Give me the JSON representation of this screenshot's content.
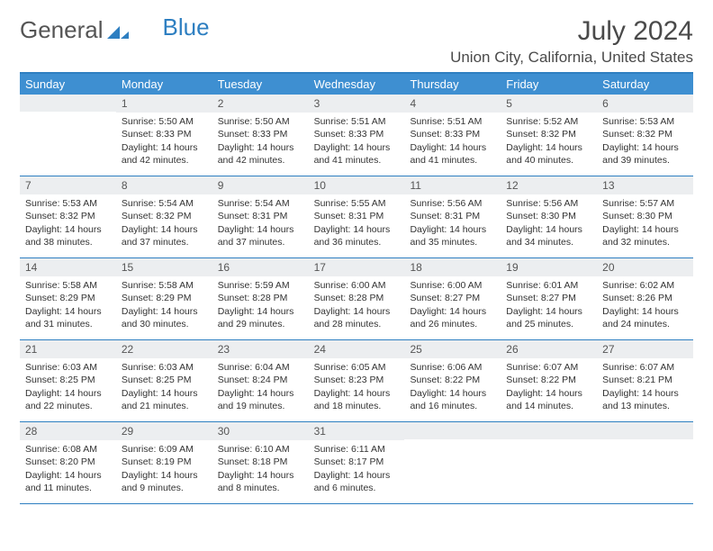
{
  "brand": {
    "part1": "General",
    "part2": "Blue"
  },
  "title": {
    "month_year": "July 2024",
    "location": "Union City, California, United States"
  },
  "colors": {
    "header_bg": "#3e8fd1",
    "header_border": "#2e7fc1",
    "daynum_bg": "#eceef0",
    "text": "#333333",
    "title_text": "#4a4a4a",
    "blue": "#2e7fc1"
  },
  "day_names": [
    "Sunday",
    "Monday",
    "Tuesday",
    "Wednesday",
    "Thursday",
    "Friday",
    "Saturday"
  ],
  "weeks": [
    [
      null,
      {
        "n": "1",
        "sr": "5:50 AM",
        "ss": "8:33 PM",
        "dl": "14 hours and 42 minutes."
      },
      {
        "n": "2",
        "sr": "5:50 AM",
        "ss": "8:33 PM",
        "dl": "14 hours and 42 minutes."
      },
      {
        "n": "3",
        "sr": "5:51 AM",
        "ss": "8:33 PM",
        "dl": "14 hours and 41 minutes."
      },
      {
        "n": "4",
        "sr": "5:51 AM",
        "ss": "8:33 PM",
        "dl": "14 hours and 41 minutes."
      },
      {
        "n": "5",
        "sr": "5:52 AM",
        "ss": "8:32 PM",
        "dl": "14 hours and 40 minutes."
      },
      {
        "n": "6",
        "sr": "5:53 AM",
        "ss": "8:32 PM",
        "dl": "14 hours and 39 minutes."
      }
    ],
    [
      {
        "n": "7",
        "sr": "5:53 AM",
        "ss": "8:32 PM",
        "dl": "14 hours and 38 minutes."
      },
      {
        "n": "8",
        "sr": "5:54 AM",
        "ss": "8:32 PM",
        "dl": "14 hours and 37 minutes."
      },
      {
        "n": "9",
        "sr": "5:54 AM",
        "ss": "8:31 PM",
        "dl": "14 hours and 37 minutes."
      },
      {
        "n": "10",
        "sr": "5:55 AM",
        "ss": "8:31 PM",
        "dl": "14 hours and 36 minutes."
      },
      {
        "n": "11",
        "sr": "5:56 AM",
        "ss": "8:31 PM",
        "dl": "14 hours and 35 minutes."
      },
      {
        "n": "12",
        "sr": "5:56 AM",
        "ss": "8:30 PM",
        "dl": "14 hours and 34 minutes."
      },
      {
        "n": "13",
        "sr": "5:57 AM",
        "ss": "8:30 PM",
        "dl": "14 hours and 32 minutes."
      }
    ],
    [
      {
        "n": "14",
        "sr": "5:58 AM",
        "ss": "8:29 PM",
        "dl": "14 hours and 31 minutes."
      },
      {
        "n": "15",
        "sr": "5:58 AM",
        "ss": "8:29 PM",
        "dl": "14 hours and 30 minutes."
      },
      {
        "n": "16",
        "sr": "5:59 AM",
        "ss": "8:28 PM",
        "dl": "14 hours and 29 minutes."
      },
      {
        "n": "17",
        "sr": "6:00 AM",
        "ss": "8:28 PM",
        "dl": "14 hours and 28 minutes."
      },
      {
        "n": "18",
        "sr": "6:00 AM",
        "ss": "8:27 PM",
        "dl": "14 hours and 26 minutes."
      },
      {
        "n": "19",
        "sr": "6:01 AM",
        "ss": "8:27 PM",
        "dl": "14 hours and 25 minutes."
      },
      {
        "n": "20",
        "sr": "6:02 AM",
        "ss": "8:26 PM",
        "dl": "14 hours and 24 minutes."
      }
    ],
    [
      {
        "n": "21",
        "sr": "6:03 AM",
        "ss": "8:25 PM",
        "dl": "14 hours and 22 minutes."
      },
      {
        "n": "22",
        "sr": "6:03 AM",
        "ss": "8:25 PM",
        "dl": "14 hours and 21 minutes."
      },
      {
        "n": "23",
        "sr": "6:04 AM",
        "ss": "8:24 PM",
        "dl": "14 hours and 19 minutes."
      },
      {
        "n": "24",
        "sr": "6:05 AM",
        "ss": "8:23 PM",
        "dl": "14 hours and 18 minutes."
      },
      {
        "n": "25",
        "sr": "6:06 AM",
        "ss": "8:22 PM",
        "dl": "14 hours and 16 minutes."
      },
      {
        "n": "26",
        "sr": "6:07 AM",
        "ss": "8:22 PM",
        "dl": "14 hours and 14 minutes."
      },
      {
        "n": "27",
        "sr": "6:07 AM",
        "ss": "8:21 PM",
        "dl": "14 hours and 13 minutes."
      }
    ],
    [
      {
        "n": "28",
        "sr": "6:08 AM",
        "ss": "8:20 PM",
        "dl": "14 hours and 11 minutes."
      },
      {
        "n": "29",
        "sr": "6:09 AM",
        "ss": "8:19 PM",
        "dl": "14 hours and 9 minutes."
      },
      {
        "n": "30",
        "sr": "6:10 AM",
        "ss": "8:18 PM",
        "dl": "14 hours and 8 minutes."
      },
      {
        "n": "31",
        "sr": "6:11 AM",
        "ss": "8:17 PM",
        "dl": "14 hours and 6 minutes."
      },
      null,
      null,
      null
    ]
  ],
  "labels": {
    "sunrise": "Sunrise:",
    "sunset": "Sunset:",
    "daylight": "Daylight:"
  }
}
